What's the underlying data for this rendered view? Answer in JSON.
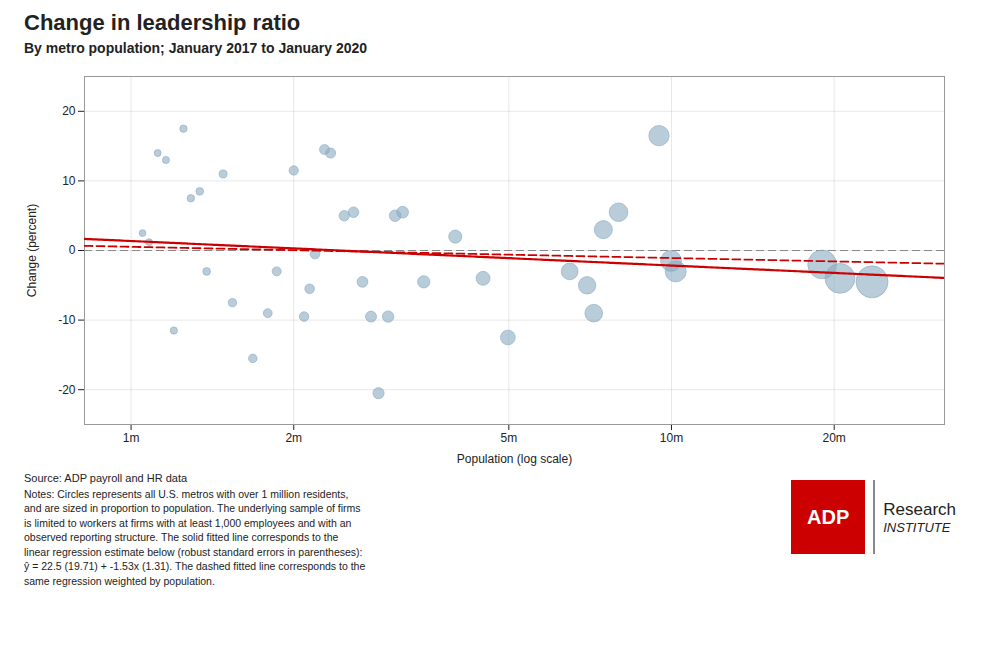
{
  "chart_data": {
    "type": "scatter",
    "title": "Change in leadership ratio",
    "subtitle": "By metro population; January 2017 to January 2020",
    "xlabel": "Population (log scale)",
    "ylabel": "Change (percent)",
    "source": "Source: ADP payroll and HR data",
    "notes": [
      "Notes: Circles represents all U.S. metros with over 1 million residents,",
      "and are sized in proportion to population. The underlying sample of firms",
      "is limited to workers at firms with at least 1,000 employees and with an",
      "observed reporting structure. The solid fitted line corresponds to the",
      "linear regression estimate below (robust standard errors in parentheses):",
      "ŷ = 22.5 (19.71) + -1.53x (1.31). The dashed fitted line corresponds to the",
      "same regression weighted by population."
    ],
    "annotations": [
      "ADP",
      "Research",
      "INSTITUTE"
    ],
    "log": "x",
    "grid": true,
    "color": "#8BAABF",
    "xlim": [
      820000,
      32000000
    ],
    "xticks": [
      {
        "value": 1000000,
        "label": "1m"
      },
      {
        "value": 2000000,
        "label": "2m"
      },
      {
        "value": 5000000,
        "label": "5m"
      },
      {
        "value": 10000000,
        "label": "10m"
      },
      {
        "value": 20000000,
        "label": "20m"
      }
    ],
    "ylim": [
      -25,
      25
    ],
    "yticks": [
      -20,
      -10,
      0,
      10,
      20
    ],
    "x": [
      1050000,
      1080000,
      1120000,
      1160000,
      1200000,
      1250000,
      1290000,
      1340000,
      1380000,
      1480000,
      1540000,
      1680000,
      1790000,
      1860000,
      2000000,
      2090000,
      2140000,
      2190000,
      2280000,
      2340000,
      2480000,
      2580000,
      2680000,
      2780000,
      2870000,
      2990000,
      3080000,
      3180000,
      3480000,
      3980000,
      4480000,
      4980000,
      6480000,
      6980000,
      7180000,
      7480000,
      7980000,
      9480000,
      9980000,
      10180000,
      19000000,
      20500000,
      23500000
    ],
    "values": [
      2.5,
      1.2,
      14.0,
      13.0,
      -11.5,
      17.5,
      7.5,
      8.5,
      -3.0,
      11.0,
      -7.5,
      -15.5,
      -9.0,
      -3.0,
      11.5,
      -9.5,
      -5.5,
      -0.5,
      14.5,
      14.0,
      5.0,
      5.5,
      -4.5,
      -9.5,
      -20.5,
      -9.5,
      5.0,
      5.5,
      -4.5,
      2.0,
      -4.0,
      -12.5,
      -3.0,
      -5.0,
      -9.0,
      3.0,
      5.5,
      16.5,
      -1.5,
      -3.0,
      -2.0,
      -4.0,
      -4.5
    ],
    "fitted_lines": [
      {
        "intercept": 22.5,
        "slope": -1.53,
        "color": "#CC0000",
        "line_style": "solid"
      },
      {
        "intercept": 10.2,
        "slope": -0.7,
        "color": "#CC0000",
        "line_style": "dashed"
      }
    ],
    "reference_lines": [
      {
        "y": 0,
        "color": "#888888",
        "line_style": "dashed"
      }
    ]
  }
}
